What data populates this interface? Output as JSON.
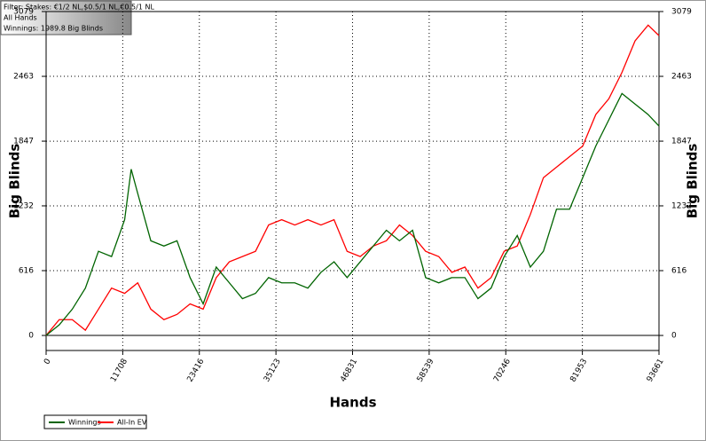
{
  "chart_data": {
    "type": "line",
    "info": [
      "Filter: Stakes: €1/2 NL,$0.5/1 NL,€0.5/1 NL",
      "All Hands",
      "Winnings: 1989.8 Big Blinds"
    ],
    "x_label": "Hands",
    "y_label": "Big Blinds",
    "x": [
      0,
      2000,
      4000,
      6000,
      8000,
      10000,
      12000,
      13000,
      14000,
      16000,
      18000,
      20000,
      22000,
      24000,
      26000,
      28000,
      30000,
      32000,
      34000,
      36000,
      38000,
      40000,
      42000,
      44000,
      46000,
      48000,
      50000,
      52000,
      54000,
      56000,
      58000,
      60000,
      62000,
      64000,
      66000,
      68000,
      70000,
      72000,
      74000,
      76000,
      78000,
      80000,
      82000,
      84000,
      86000,
      88000,
      90000,
      92000,
      93661
    ],
    "series": [
      {
        "name": "Winnings",
        "color": "#006400",
        "values": [
          0,
          100,
          250,
          450,
          800,
          750,
          1100,
          1580,
          1350,
          900,
          850,
          900,
          550,
          300,
          650,
          500,
          350,
          400,
          550,
          500,
          500,
          450,
          600,
          700,
          550,
          700,
          850,
          1000,
          900,
          1000,
          550,
          500,
          550,
          550,
          350,
          450,
          750,
          950,
          650,
          800,
          1200,
          1200,
          1500,
          1800,
          2050,
          2300,
          2200,
          2100,
          1990
        ]
      },
      {
        "name": "All-In EV",
        "color": "#ff0000",
        "values": [
          0,
          150,
          150,
          50,
          250,
          450,
          400,
          450,
          500,
          250,
          150,
          200,
          300,
          250,
          550,
          700,
          750,
          800,
          1050,
          1100,
          1050,
          1100,
          1050,
          1100,
          800,
          750,
          850,
          900,
          1050,
          950,
          800,
          750,
          600,
          650,
          450,
          550,
          800,
          850,
          1150,
          1500,
          1600,
          1700,
          1800,
          2100,
          2250,
          2500,
          2800,
          2950,
          2850
        ]
      }
    ],
    "xlim": [
      0,
      93661
    ],
    "xticks": [
      0,
      11708,
      23416,
      35123,
      46831,
      58539,
      70246,
      81953,
      93661
    ],
    "ylim": [
      -143,
      3079
    ],
    "yticks": [
      0,
      616,
      1232,
      1847,
      2463,
      3079
    ],
    "grid": true
  }
}
